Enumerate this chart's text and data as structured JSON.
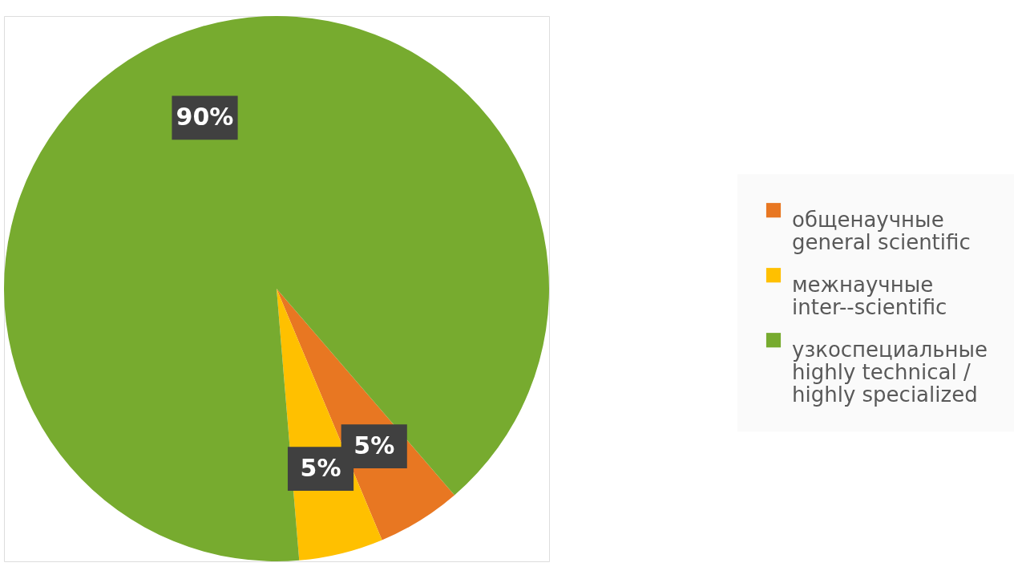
{
  "chart_data": {
    "type": "pie",
    "categories": [
      "общенаучные\ngeneral scientific",
      "межнаучные\ninter--scientific",
      "узкоспециальные\nhighly technical /\nhighly specialized"
    ],
    "values": [
      5,
      5,
      90
    ],
    "colors": [
      "#e87722",
      "#ffc000",
      "#77ab2f"
    ],
    "value_labels": [
      "5%",
      "5%",
      "90%"
    ],
    "legend": "right"
  }
}
